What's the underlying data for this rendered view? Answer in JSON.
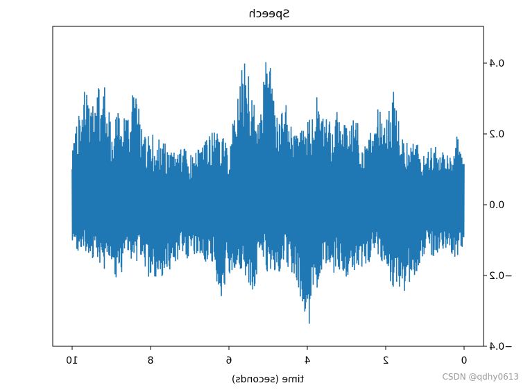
{
  "chart_data": {
    "type": "line",
    "title": "Speech",
    "xlabel": "time (seconds)",
    "ylabel": "",
    "mirrored": true,
    "xlim": [
      0,
      10
    ],
    "ylim": [
      -0.4,
      0.4
    ],
    "xticks": [
      0,
      2,
      4,
      6,
      8,
      10
    ],
    "xtick_labels": [
      "0",
      "2",
      "4",
      "6",
      "8",
      "10"
    ],
    "yticks": [
      -0.4,
      -0.2,
      0.0,
      0.2,
      0.4
    ],
    "ytick_labels": [
      "−0.4",
      "−0.2",
      "0.0",
      "0.2",
      "0.4"
    ],
    "grid": false,
    "legend": "none",
    "series": [
      {
        "color": "#1f77b4",
        "x": [
          0.0,
          0.2,
          0.4,
          0.6,
          0.8,
          1.0,
          1.2,
          1.4,
          1.6,
          1.8,
          2.0,
          2.2,
          2.4,
          2.6,
          2.8,
          3.0,
          3.2,
          3.4,
          3.6,
          3.8,
          4.0,
          4.2,
          4.4,
          4.6,
          4.8,
          5.0,
          5.2,
          5.4,
          5.6,
          5.8,
          6.0,
          6.2,
          6.4,
          6.6,
          6.8,
          7.0,
          7.2,
          7.4,
          7.6,
          7.8,
          8.0,
          8.2,
          8.4,
          8.6,
          8.8,
          9.0,
          9.2,
          9.4,
          9.6,
          9.8,
          10.0
        ],
        "envelope_max": [
          0.16,
          0.2,
          0.14,
          0.16,
          0.18,
          0.16,
          0.18,
          0.17,
          0.2,
          0.34,
          0.23,
          0.3,
          0.2,
          0.2,
          0.28,
          0.22,
          0.3,
          0.24,
          0.25,
          0.32,
          0.24,
          0.2,
          0.25,
          0.3,
          0.26,
          0.46,
          0.28,
          0.3,
          0.44,
          0.3,
          0.16,
          0.2,
          0.22,
          0.18,
          0.16,
          0.14,
          0.17,
          0.15,
          0.17,
          0.2,
          0.2,
          0.19,
          0.38,
          0.24,
          0.3,
          0.23,
          0.35,
          0.32,
          0.35,
          0.28,
          0.15
        ],
        "envelope_min": [
          -0.12,
          -0.15,
          -0.14,
          -0.12,
          -0.16,
          -0.14,
          -0.19,
          -0.22,
          -0.28,
          -0.24,
          -0.19,
          -0.14,
          -0.16,
          -0.18,
          -0.2,
          -0.23,
          -0.18,
          -0.2,
          -0.16,
          -0.3,
          -0.36,
          -0.25,
          -0.2,
          -0.16,
          -0.22,
          -0.2,
          -0.15,
          -0.26,
          -0.2,
          -0.18,
          -0.2,
          -0.27,
          -0.18,
          -0.17,
          -0.15,
          -0.16,
          -0.15,
          -0.17,
          -0.21,
          -0.2,
          -0.24,
          -0.15,
          -0.17,
          -0.14,
          -0.23,
          -0.17,
          -0.19,
          -0.16,
          -0.14,
          -0.17,
          -0.1
        ]
      }
    ]
  },
  "watermark": "CSDN @qdhy0613"
}
